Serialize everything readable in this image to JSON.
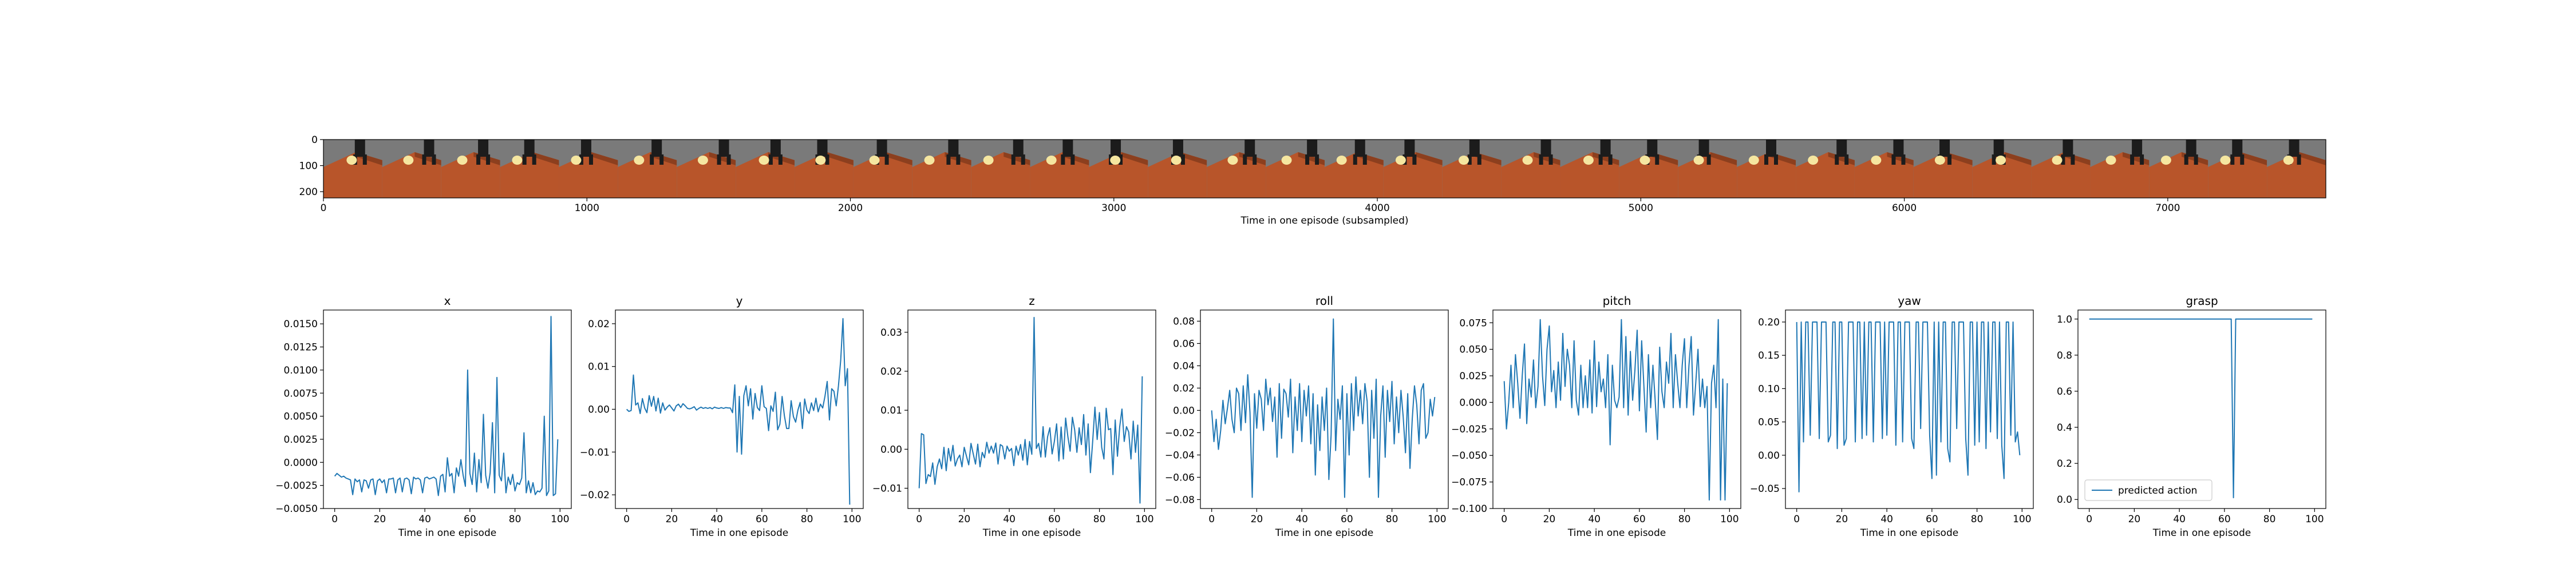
{
  "colors": {
    "line": "#1f77b4",
    "axis": "#000000",
    "legend_border": "#cccccc",
    "filmstrip_background": "#7a7a7a",
    "filmstrip_floor": "#b8552a",
    "filmstrip_object": "#f5e6a0",
    "filmstrip_gripper": "#1c1c1c"
  },
  "filmstrip": {
    "xlabel": "Time in one episode (subsampled)",
    "xticks": [
      0,
      1000,
      2000,
      3000,
      4000,
      5000,
      6000,
      7000
    ],
    "yticks": [
      0,
      100,
      200
    ],
    "xlim": [
      0,
      7600
    ],
    "ylim": [
      224,
      0
    ],
    "frame_count": 34,
    "content_icon": "robot-gripper-camera-frame"
  },
  "chart_data": [
    {
      "type": "line",
      "title": "x",
      "xlabel": "Time in one episode",
      "xlim": [
        -5,
        105
      ],
      "ylim": [
        -0.005,
        0.0165
      ],
      "xticks": [
        0,
        20,
        40,
        60,
        80,
        100
      ],
      "yticks": [
        -0.005,
        -0.0025,
        0.0,
        0.0025,
        0.005,
        0.0075,
        0.01,
        0.0125,
        0.015
      ],
      "ytick_labels": [
        "−0.0050",
        "−0.0025",
        "0.0000",
        "0.0025",
        "0.0050",
        "0.0075",
        "0.0100",
        "0.0125",
        "0.0150"
      ],
      "series": [
        {
          "values": [
            -0.0015,
            -0.0012,
            -0.0014,
            -0.0016,
            -0.0015,
            -0.0017,
            -0.0018,
            -0.0019,
            -0.0035,
            -0.0018,
            -0.0021,
            -0.0019,
            -0.0032,
            -0.0019,
            -0.002,
            -0.0028,
            -0.0019,
            -0.0018,
            -0.0035,
            -0.002,
            -0.0018,
            -0.0022,
            -0.0019,
            -0.0033,
            -0.0018,
            -0.0018,
            -0.0017,
            -0.0033,
            -0.0019,
            -0.0017,
            -0.0032,
            -0.0018,
            -0.0017,
            -0.0019,
            -0.0034,
            -0.0016,
            -0.0018,
            -0.0017,
            -0.0019,
            -0.0033,
            -0.0017,
            -0.0016,
            -0.0018,
            -0.0017,
            -0.0016,
            -0.0018,
            -0.0036,
            -0.0015,
            -0.0013,
            -0.0032,
            0.0005,
            -0.0015,
            -0.0012,
            -0.0033,
            -0.0006,
            -0.0015,
            0.0003,
            -0.0014,
            -0.0026,
            0.01,
            -0.0012,
            -0.0024,
            0.001,
            -0.0032,
            0.0003,
            -0.0022,
            0.0052,
            -0.0014,
            -0.0028,
            -0.0011,
            0.0043,
            -0.0033,
            0.0092,
            -0.0014,
            -0.002,
            0.001,
            -0.0033,
            -0.0016,
            -0.0024,
            -0.0013,
            -0.0031,
            -0.0022,
            -0.0024,
            -0.0017,
            0.0032,
            -0.0033,
            -0.002,
            -0.0033,
            -0.0022,
            -0.0035,
            -0.0031,
            -0.0032,
            -0.0028,
            0.005,
            -0.0036,
            -0.0031,
            0.0158,
            -0.0036,
            -0.0034,
            0.0025
          ]
        }
      ]
    },
    {
      "type": "line",
      "title": "y",
      "xlabel": "Time in one episode",
      "xlim": [
        -5,
        105
      ],
      "ylim": [
        -0.0232,
        0.0232
      ],
      "xticks": [
        0,
        20,
        40,
        60,
        80,
        100
      ],
      "yticks": [
        -0.02,
        -0.01,
        0.0,
        0.01,
        0.02
      ],
      "ytick_labels": [
        "−0.02",
        "−0.01",
        "0.00",
        "0.01",
        "0.02"
      ],
      "series": [
        {
          "values": [
            0.0,
            -0.0005,
            -0.0003,
            0.008,
            0.001,
            0.0015,
            -0.001,
            0.0025,
            0.0003,
            -0.0008,
            0.0032,
            0.0007,
            0.003,
            -0.0004,
            0.0026,
            -0.0009,
            0.0015,
            -0.0002,
            0.0005,
            0.001,
            0.0003,
            -0.0004,
            0.0008,
            0.0012,
            0.0004,
            0.0013,
            0.0008,
            0.0002,
            0.0001,
            0.0003,
            0.0006,
            -0.0002,
            0.0002,
            0.0005,
            0.0002,
            0.0004,
            0.0002,
            0.0004,
            0.0001,
            0.0005,
            0.0003,
            0.0002,
            0.0004,
            0.0002,
            0.0004,
            0.0003,
            0.0003,
            -0.0008,
            0.0057,
            -0.01,
            0.003,
            -0.0105,
            0.0032,
            0.0055,
            0.0008,
            0.0048,
            -0.0023,
            0.0037,
            0.0004,
            -0.0003,
            0.0055,
            0.0006,
            0.0002,
            -0.005,
            0.0008,
            -0.0005,
            0.004,
            -0.0048,
            -0.0035,
            0.003,
            -0.0015,
            -0.0045,
            -0.0045,
            0.002,
            -0.0017,
            -0.003,
            -0.0002,
            0.0016,
            -0.0045,
            0.0024,
            -0.0002,
            -0.001,
            0.0015,
            -0.0003,
            0.0026,
            -0.0006,
            0.0012,
            0.0003,
            0.003,
            0.0065,
            -0.0025,
            0.0048,
            0.0042,
            0.0008,
            0.0055,
            0.0115,
            0.0212,
            0.0055,
            0.0095,
            -0.0223
          ]
        }
      ]
    },
    {
      "type": "line",
      "title": "z",
      "xlabel": "Time in one episode",
      "xlim": [
        -5,
        105
      ],
      "ylim": [
        -0.0152,
        0.0357
      ],
      "xticks": [
        0,
        20,
        40,
        60,
        80,
        100
      ],
      "yticks": [
        -0.01,
        0.0,
        0.01,
        0.02,
        0.03
      ],
      "ytick_labels": [
        "−0.01",
        "0.00",
        "0.01",
        "0.02",
        "0.03"
      ],
      "series": [
        {
          "values": [
            -0.01,
            0.004,
            0.0037,
            -0.0088,
            -0.0065,
            -0.007,
            -0.0035,
            -0.009,
            -0.0045,
            -0.0025,
            -0.005,
            0.0005,
            -0.0055,
            0.0002,
            -0.003,
            0.001,
            -0.0043,
            -0.0025,
            -0.0015,
            -0.0045,
            0.0005,
            -0.0018,
            -0.004,
            0.0015,
            -0.0012,
            -0.0038,
            0.0013,
            -0.0045,
            -0.0008,
            -0.0022,
            0.0018,
            -0.001,
            0.0008,
            -0.001,
            0.0016,
            -0.0038,
            0.0012,
            0.0008,
            -0.0025,
            0.0008,
            -0.0005,
            0.0002,
            -0.0042,
            0.0008,
            -0.0015,
            0.0012,
            -0.0028,
            0.0025,
            -0.004,
            0.002,
            -0.0013,
            0.0338,
            0.0002,
            0.0015,
            -0.002,
            0.0058,
            -0.002,
            0.0032,
            0.0055,
            -0.0012,
            0.002,
            0.0065,
            -0.003,
            0.0057,
            -0.0025,
            0.008,
            0.0032,
            -0.0005,
            0.0082,
            0.005,
            -0.0008,
            0.0055,
            0.0012,
            0.0089,
            -0.0015,
            0.0065,
            -0.006,
            0.002,
            0.0108,
            0.0025,
            0.0094,
            0.0005,
            -0.0025,
            0.0105,
            0.005,
            0.0053,
            -0.0065,
            0.0075,
            -0.0018,
            0.0058,
            0.0103,
            0.002,
            0.0058,
            0.0044,
            -0.0025,
            0.0072,
            -0.0008,
            0.0062,
            -0.0138,
            0.0187
          ]
        }
      ]
    },
    {
      "type": "line",
      "title": "roll",
      "xlabel": "Time in one episode",
      "xlim": [
        -5,
        105
      ],
      "ylim": [
        -0.088,
        0.09
      ],
      "xticks": [
        0,
        20,
        40,
        60,
        80,
        100
      ],
      "yticks": [
        -0.08,
        -0.06,
        -0.04,
        -0.02,
        0.0,
        0.02,
        0.04,
        0.06,
        0.08
      ],
      "ytick_labels": [
        "−0.08",
        "−0.06",
        "−0.04",
        "−0.02",
        "0.00",
        "0.02",
        "0.04",
        "0.06",
        "0.08"
      ],
      "series": [
        {
          "values": [
            0.0,
            -0.028,
            -0.008,
            -0.035,
            -0.018,
            0.009,
            -0.012,
            0.002,
            0.018,
            -0.008,
            -0.02,
            0.02,
            0.015,
            -0.018,
            0.022,
            -0.011,
            0.032,
            -0.002,
            -0.078,
            0.015,
            -0.016,
            0.018,
            0.01,
            -0.018,
            0.028,
            0.005,
            0.02,
            -0.01,
            0.012,
            -0.042,
            0.024,
            -0.025,
            0.019,
            0.015,
            -0.006,
            0.028,
            -0.038,
            0.012,
            -0.018,
            0.024,
            -0.028,
            0.018,
            -0.005,
            0.022,
            -0.03,
            0.015,
            -0.058,
            0.005,
            -0.036,
            0.012,
            -0.018,
            0.02,
            -0.062,
            -0.022,
            0.082,
            -0.036,
            0.01,
            -0.008,
            0.022,
            -0.078,
            0.015,
            -0.04,
            0.024,
            -0.018,
            0.03,
            -0.005,
            0.018,
            -0.012,
            0.024,
            0.008,
            -0.06,
            0.018,
            -0.025,
            0.028,
            -0.078,
            -0.005,
            0.022,
            -0.042,
            0.018,
            -0.01,
            0.026,
            -0.03,
            0.012,
            -0.02,
            0.018,
            -0.006,
            -0.038,
            0.015,
            -0.052,
            -0.008,
            0.022,
            0.005,
            -0.03,
            0.018,
            0.024,
            -0.025,
            -0.02,
            0.01,
            -0.005,
            0.012
          ]
        }
      ]
    },
    {
      "type": "line",
      "title": "pitch",
      "xlabel": "Time in one episode",
      "xlim": [
        -5,
        105
      ],
      "ylim": [
        -0.1,
        0.087
      ],
      "xticks": [
        0,
        20,
        40,
        60,
        80,
        100
      ],
      "yticks": [
        -0.1,
        -0.075,
        -0.05,
        -0.025,
        0.0,
        0.025,
        0.05,
        0.075
      ],
      "ytick_labels": [
        "−0.100",
        "−0.075",
        "−0.050",
        "−0.025",
        "0.000",
        "0.025",
        "0.050",
        "0.075"
      ],
      "series": [
        {
          "values": [
            0.02,
            -0.025,
            0.0,
            0.035,
            -0.005,
            0.045,
            0.018,
            -0.015,
            0.025,
            0.055,
            -0.02,
            0.022,
            0.005,
            0.04,
            -0.005,
            0.015,
            0.078,
            0.025,
            -0.003,
            0.05,
            0.072,
            0.01,
            0.03,
            -0.005,
            0.038,
            0.002,
            0.065,
            0.015,
            0.05,
            0.035,
            -0.005,
            0.058,
            0.002,
            -0.012,
            0.035,
            -0.005,
            0.025,
            -0.005,
            0.04,
            -0.01,
            0.058,
            -0.004,
            0.038,
            0.01,
            0.022,
            -0.005,
            0.045,
            -0.04,
            0.035,
            0.002,
            -0.005,
            0.005,
            0.078,
            -0.005,
            0.062,
            -0.012,
            0.048,
            0.002,
            0.03,
            0.068,
            -0.008,
            0.058,
            0.015,
            -0.028,
            0.045,
            -0.005,
            0.035,
            0.002,
            -0.035,
            0.052,
            0.01,
            -0.005,
            0.038,
            0.018,
            0.065,
            -0.005,
            0.045,
            0.018,
            -0.005,
            0.035,
            0.06,
            -0.005,
            0.035,
            0.062,
            -0.012,
            0.018,
            0.05,
            -0.004,
            0.022,
            -0.005,
            0.015,
            -0.092,
            0.018,
            0.035,
            -0.005,
            0.078,
            -0.092,
            0.022,
            -0.092,
            0.018
          ]
        }
      ]
    },
    {
      "type": "line",
      "title": "yaw",
      "xlabel": "Time in one episode",
      "xlim": [
        -5,
        105
      ],
      "ylim": [
        -0.08,
        0.218
      ],
      "xticks": [
        0,
        20,
        40,
        60,
        80,
        100
      ],
      "yticks": [
        -0.05,
        0.0,
        0.05,
        0.1,
        0.15,
        0.2
      ],
      "ytick_labels": [
        "−0.05",
        "0.00",
        "0.05",
        "0.10",
        "0.15",
        "0.20"
      ],
      "series": [
        {
          "values": [
            0.2,
            -0.055,
            0.2,
            0.02,
            0.2,
            0.2,
            0.03,
            0.2,
            0.2,
            0.2,
            0.025,
            0.2,
            0.2,
            0.2,
            0.02,
            0.03,
            0.2,
            0.2,
            0.01,
            0.2,
            0.2,
            0.015,
            0.025,
            0.2,
            0.2,
            0.2,
            0.02,
            0.2,
            0.2,
            0.025,
            0.2,
            0.03,
            0.2,
            0.2,
            0.02,
            0.2,
            0.2,
            0.2,
            0.025,
            0.2,
            0.03,
            0.2,
            0.2,
            0.2,
            0.015,
            0.2,
            0.2,
            0.02,
            0.2,
            0.2,
            0.2,
            0.025,
            0.01,
            0.2,
            0.2,
            0.04,
            0.2,
            0.2,
            0.2,
            0.03,
            -0.035,
            0.2,
            -0.03,
            0.2,
            0.02,
            0.2,
            0.2,
            0.01,
            -0.01,
            0.2,
            0.2,
            0.04,
            0.2,
            0.2,
            0.2,
            0.025,
            -0.03,
            0.2,
            0.2,
            0.015,
            0.2,
            0.02,
            0.2,
            0.2,
            0.01,
            0.2,
            0.035,
            0.2,
            0.2,
            0.025,
            0.2,
            0.015,
            -0.035,
            0.2,
            0.2,
            0.03,
            0.2,
            0.02,
            0.035,
            0.0
          ]
        }
      ]
    },
    {
      "type": "line",
      "title": "grasp",
      "xlabel": "Time in one episode",
      "xlim": [
        -5,
        105
      ],
      "ylim": [
        -0.05,
        1.05
      ],
      "xticks": [
        0,
        20,
        40,
        60,
        80,
        100
      ],
      "yticks": [
        0.0,
        0.2,
        0.4,
        0.6,
        0.8,
        1.0
      ],
      "ytick_labels": [
        "0.0",
        "0.2",
        "0.4",
        "0.6",
        "0.8",
        "1.0"
      ],
      "legend": {
        "label": "predicted action",
        "placement": "lower left"
      },
      "series": [
        {
          "name": "predicted action",
          "values": [
            1,
            1,
            1,
            1,
            1,
            1,
            1,
            1,
            1,
            1,
            1,
            1,
            1,
            1,
            1,
            1,
            1,
            1,
            1,
            1,
            1,
            1,
            1,
            1,
            1,
            1,
            1,
            1,
            1,
            1,
            1,
            1,
            1,
            1,
            1,
            1,
            1,
            1,
            1,
            1,
            1,
            1,
            1,
            1,
            1,
            1,
            1,
            1,
            1,
            1,
            1,
            1,
            1,
            1,
            1,
            1,
            1,
            1,
            1,
            1,
            1,
            1,
            1,
            1,
            0.01,
            1,
            1,
            1,
            1,
            1,
            1,
            1,
            1,
            1,
            1,
            1,
            1,
            1,
            1,
            1,
            1,
            1,
            1,
            1,
            1,
            1,
            1,
            1,
            1,
            1,
            1,
            1,
            1,
            1,
            1,
            1,
            1,
            1,
            1,
            1
          ]
        }
      ]
    }
  ]
}
